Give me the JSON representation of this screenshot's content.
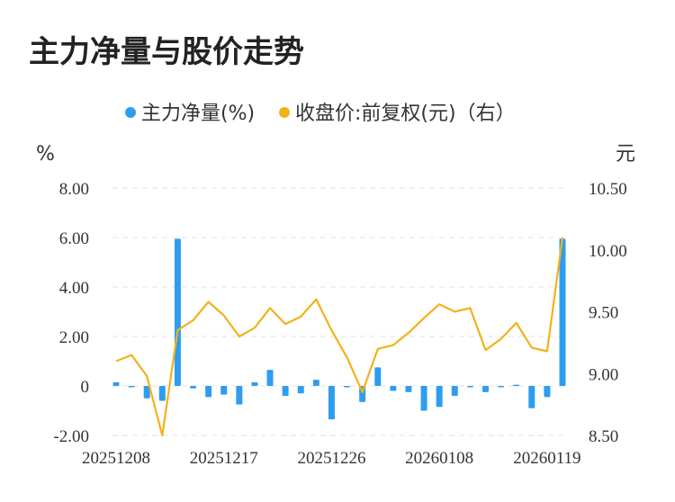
{
  "title": "主力净量与股价走势",
  "colors": {
    "bar": "#2e9df0",
    "line": "#f2b21a",
    "grid": "#e3e3e3"
  },
  "legend": {
    "bar_label": "主力净量(%)",
    "line_label": "收盘价:前复权(元)（右）"
  },
  "units": {
    "left": "%",
    "right": "元"
  },
  "chart_data": {
    "type": "bar+line",
    "x_tick_labels": [
      "20251208",
      "20251217",
      "20251226",
      "20260108",
      "20260119"
    ],
    "y_left": {
      "ticks": [
        "-2.00",
        "0",
        "2.00",
        "4.00",
        "6.00",
        "8.00"
      ],
      "range": [
        -2,
        8
      ]
    },
    "y_right": {
      "ticks": [
        "8.50",
        "9.00",
        "9.50",
        "10.00",
        "10.50"
      ],
      "range": [
        8.5,
        10.5
      ]
    },
    "grid": true,
    "legend_position": "top",
    "series": [
      {
        "name": "主力净量(%)",
        "type": "bar",
        "axis": "left",
        "values": [
          0.15,
          -0.05,
          -0.5,
          -0.6,
          5.95,
          -0.1,
          -0.45,
          -0.35,
          -0.75,
          0.15,
          0.65,
          -0.4,
          -0.3,
          0.25,
          -1.35,
          -0.05,
          -0.65,
          0.75,
          -0.2,
          -0.25,
          -1.0,
          -0.85,
          -0.4,
          -0.05,
          -0.25,
          -0.05,
          0.05,
          -0.9,
          -0.45,
          5.95
        ]
      },
      {
        "name": "收盘价:前复权(元)（右）",
        "type": "line",
        "axis": "right",
        "values": [
          9.1,
          9.15,
          8.98,
          8.5,
          9.35,
          9.43,
          9.58,
          9.47,
          9.3,
          9.37,
          9.53,
          9.4,
          9.46,
          9.6,
          9.35,
          9.13,
          8.85,
          9.2,
          9.23,
          9.33,
          9.45,
          9.56,
          9.5,
          9.53,
          9.19,
          9.28,
          9.41,
          9.21,
          9.18,
          10.1
        ]
      }
    ]
  }
}
